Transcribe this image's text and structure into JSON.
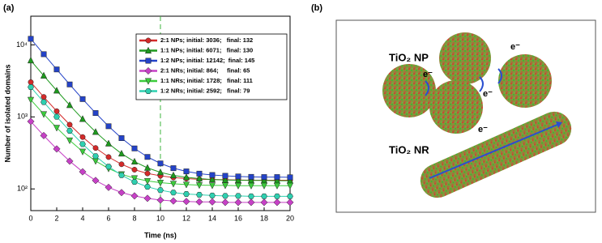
{
  "chart_data": {
    "type": "line",
    "panel_label": "(a)",
    "xlabel": "Time (ns)",
    "ylabel": "Number of isolated domains",
    "x": [
      0,
      1,
      2,
      3,
      4,
      5,
      6,
      7,
      8,
      9,
      10,
      11,
      12,
      13,
      14,
      15,
      16,
      17,
      18,
      19,
      20
    ],
    "xlim": [
      0,
      20
    ],
    "xticks": [
      0,
      2,
      4,
      6,
      8,
      10,
      12,
      14,
      16,
      18,
      20
    ],
    "yscale": "log",
    "ylim": [
      50,
      25000
    ],
    "yticks": [
      {
        "value": 100,
        "label": "10²"
      },
      {
        "value": 1000,
        "label": "10³"
      },
      {
        "value": 10000,
        "label": "10⁴"
      }
    ],
    "vline": 10,
    "legend": "upper right",
    "series": [
      {
        "name": "2:1 NPs; initial: 3036;   final: 132",
        "color": "#d42a2a",
        "marker": "circle",
        "values": [
          3036,
          1893,
          1200,
          780,
          525,
          370,
          277,
          220,
          185,
          164,
          152,
          144,
          139,
          136,
          135,
          134,
          133,
          132,
          132,
          132,
          132
        ]
      },
      {
        "name": "1:1 NPs; initial: 6071;   final: 130",
        "color": "#1e9a1e",
        "marker": "triangle-up",
        "values": [
          6071,
          3733,
          2316,
          1455,
          934,
          618,
          426,
          309,
          239,
          196,
          170,
          154,
          145,
          139,
          135,
          133,
          132,
          131,
          131,
          130,
          130
        ]
      },
      {
        "name": "1:2 NPs; initial: 12142;  final: 145",
        "color": "#2443c8",
        "marker": "square",
        "values": [
          12142,
          7421,
          4559,
          2822,
          1768,
          1130,
          742,
          507,
          365,
          278,
          226,
          194,
          175,
          163,
          156,
          152,
          149,
          147,
          146,
          146,
          145
        ]
      },
      {
        "name": "2:1 NRs; initial: 864;     final: 65",
        "color": "#c640c6",
        "marker": "diamond",
        "values": [
          864,
          550,
          359,
          243,
          173,
          131,
          105,
          89,
          80,
          74,
          70,
          68,
          67,
          66,
          66,
          65,
          65,
          65,
          65,
          65,
          65
        ]
      },
      {
        "name": "1:1 NRs; initial: 1728;   final: 111",
        "color": "#3ccc3c",
        "marker": "triangle-down",
        "values": [
          1728,
          1092,
          706,
          472,
          330,
          244,
          192,
          160,
          141,
          129,
          122,
          118,
          115,
          113,
          112,
          112,
          111,
          111,
          111,
          111,
          111
        ]
      },
      {
        "name": "1:2 NRs; initial: 2592;   final: 79",
        "color": "#2ed0b0",
        "marker": "hexagon",
        "values": [
          2592,
          1603,
          1004,
          640,
          419,
          285,
          204,
          155,
          125,
          107,
          96,
          89,
          85,
          83,
          81,
          80,
          80,
          79,
          79,
          79,
          79
        ]
      }
    ]
  },
  "diagram": {
    "panel_label": "(b)",
    "np_label": "TiO₂ NP",
    "nr_label": "TiO₂ NR",
    "electron_labels": [
      "e⁻",
      "e⁻",
      "e⁻",
      "e⁻"
    ]
  }
}
